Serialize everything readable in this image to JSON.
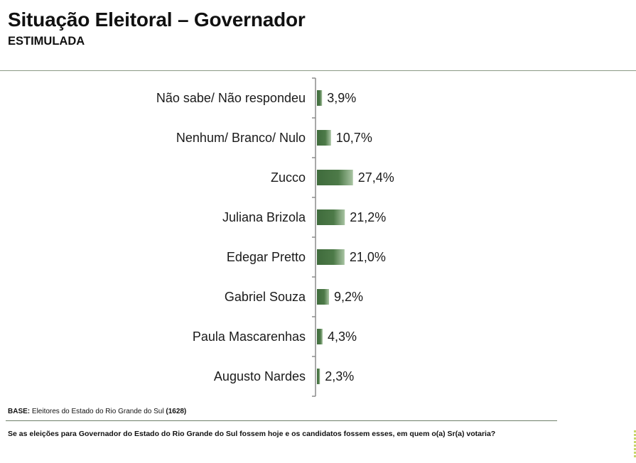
{
  "header": {
    "title": "Situação Eleitoral – Governador",
    "subtitle": "ESTIMULADA"
  },
  "chart_data": {
    "type": "bar",
    "orientation": "horizontal",
    "categories": [
      "Não sabe/ Não respondeu",
      "Nenhum/ Branco/ Nulo",
      "Zucco",
      "Juliana Brizola",
      "Edegar Pretto",
      "Gabriel Souza",
      "Paula Mascarenhas",
      "Augusto Nardes"
    ],
    "values": [
      3.9,
      10.7,
      27.4,
      21.2,
      21.0,
      9.2,
      4.3,
      2.3
    ],
    "value_labels": [
      "3,9%",
      "10,7%",
      "27,4%",
      "21,2%",
      "21,0%",
      "9,2%",
      "4,3%",
      "2,3%"
    ],
    "title": "",
    "xlabel": "",
    "ylabel": "",
    "bar_color": "#3f6b3c",
    "grid": false,
    "legend": "none"
  },
  "footer": {
    "base_label": "BASE:",
    "base_text": " Eleitores do Estado do Rio Grande do Sul ",
    "base_count": "(1628)",
    "question": "Se as eleições para Governador do Estado do Rio Grande do Sul fossem hoje e os candidatos fossem esses, em quem o(a) Sr(a) votaria?"
  }
}
